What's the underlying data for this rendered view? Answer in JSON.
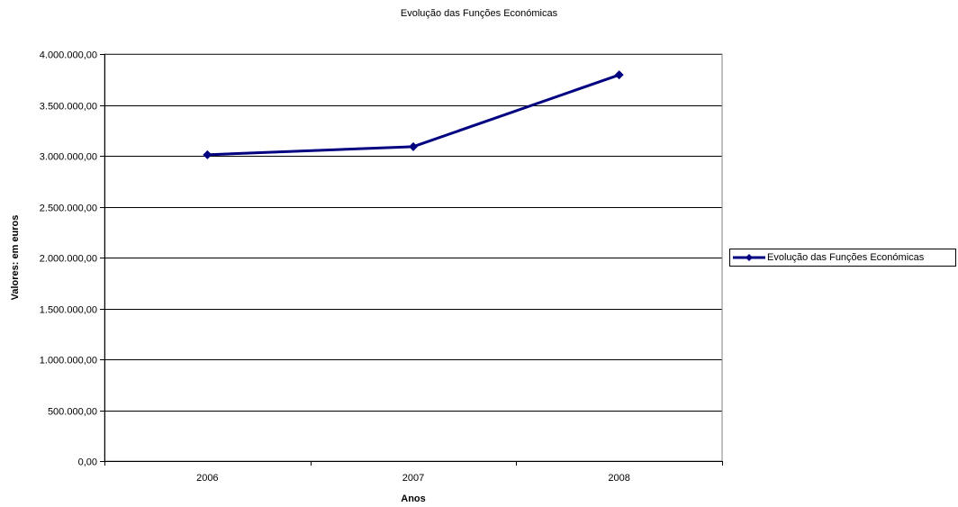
{
  "chart_data": {
    "type": "line",
    "title": "Evolução das Funções Económicas",
    "xlabel": "Anos",
    "ylabel": "Valores: em euros",
    "categories": [
      "2006",
      "2007",
      "2008"
    ],
    "series": [
      {
        "name": "Evolução das Funções Económicas",
        "values": [
          3010000,
          3090000,
          3795000
        ],
        "color": "#000080",
        "marker": "diamond"
      }
    ],
    "ylim": [
      0,
      4000000
    ],
    "yticks": [
      0,
      500000,
      1000000,
      1500000,
      2000000,
      2500000,
      3000000,
      3500000,
      4000000
    ],
    "ytick_labels": [
      "0,00",
      "500.000,00",
      "1.000.000,00",
      "1.500.000,00",
      "2.000.000,00",
      "2.500.000,00",
      "3.000.000,00",
      "3.500.000,00",
      "4.000.000,00"
    ],
    "grid": true,
    "legend": "right"
  }
}
